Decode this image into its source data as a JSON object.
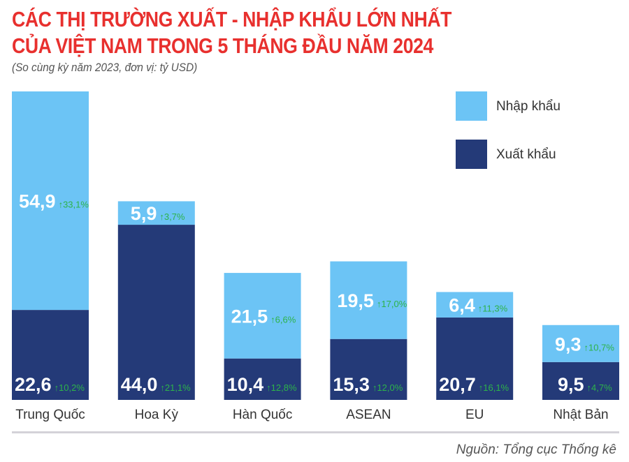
{
  "title_line1": "CÁC THỊ TRƯỜNG XUẤT - NHẬP KHẨU LỚN NHẤT",
  "title_line2": "CỦA VIỆT NAM TRONG 5 THÁNG ĐẦU NĂM 2024",
  "subtitle": "(So cùng kỳ năm 2023, đơn vị: tỷ USD)",
  "source": "Nguồn: Tổng cục Thống kê",
  "colors": {
    "import": "#6CC4F5",
    "export": "#243A78",
    "title": "#E8302E",
    "growth": "#2DB34A"
  },
  "chart_data": {
    "type": "bar",
    "stacked": true,
    "categories": [
      "Trung Quốc",
      "Hoa Kỳ",
      "Hàn Quốc",
      "ASEAN",
      "EU",
      "Nhật Bản"
    ],
    "legend": {
      "placement": "top-right",
      "entries": [
        "Nhập khẩu",
        "Xuất khẩu"
      ]
    },
    "series": [
      {
        "name": "Xuất khẩu",
        "values": [
          22.6,
          44.0,
          10.4,
          15.3,
          20.7,
          9.5
        ],
        "labels": [
          "22,6",
          "44,0",
          "10,4",
          "15,3",
          "20,7",
          "9,5"
        ],
        "growth": [
          "10,2%",
          "21,1%",
          "12,8%",
          "12,0%",
          "16,1%",
          "4,7%"
        ]
      },
      {
        "name": "Nhập khẩu",
        "values": [
          54.9,
          5.9,
          21.5,
          19.5,
          6.4,
          9.3
        ],
        "labels": [
          "54,9",
          "5,9",
          "21,5",
          "19,5",
          "6,4",
          "9,3"
        ],
        "growth": [
          "33,1%",
          "3,7%",
          "6,6%",
          "17,0%",
          "11,3%",
          "10,7%"
        ]
      }
    ],
    "ylim": [
      0,
      77.5
    ],
    "grid": false
  }
}
